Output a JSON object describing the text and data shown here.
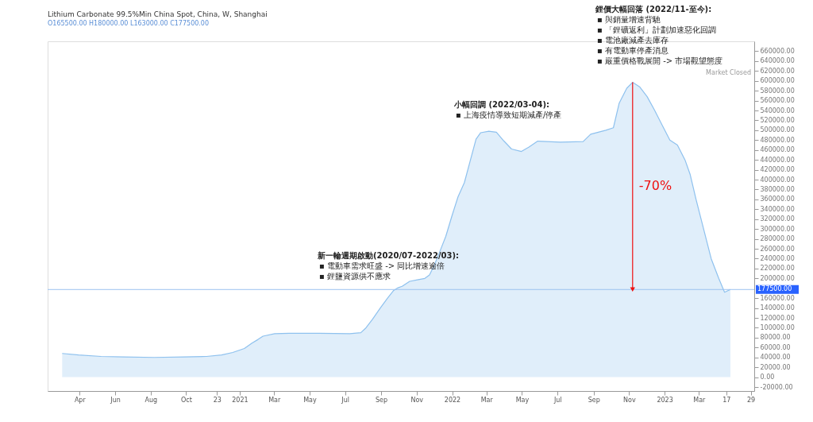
{
  "chart_data": {
    "type": "area",
    "title": "Lithium Carbonate 99.5%Min China Spot, China, W, Shanghai",
    "subtitle": "O165500.00  H180000.00  L163000.00  C177500.00",
    "x": [
      "2020-03-02",
      "2020-03-30",
      "2020-05-08",
      "2020-06-16",
      "2020-08-07",
      "2020-09-27",
      "2020-11-05",
      "2020-12-01",
      "2020-12-20",
      "2021-01-09",
      "2021-01-22",
      "2021-02-01",
      "2021-02-10",
      "2021-03-02",
      "2021-03-27",
      "2021-05-18",
      "2021-07-09",
      "2021-07-28",
      "2021-08-06",
      "2021-08-17",
      "2021-08-30",
      "2021-09-12",
      "2021-09-22",
      "2021-09-30",
      "2021-10-07",
      "2021-10-20",
      "2021-11-02",
      "2021-11-15",
      "2021-11-23",
      "2021-12-01",
      "2021-12-11",
      "2021-12-21",
      "2022-01-01",
      "2022-01-11",
      "2022-01-22",
      "2022-02-01",
      "2022-02-11",
      "2022-02-19",
      "2022-03-05",
      "2022-03-18",
      "2022-03-31",
      "2022-04-13",
      "2022-04-30",
      "2022-05-13",
      "2022-05-28",
      "2022-07-06",
      "2022-08-14",
      "2022-08-27",
      "2022-09-22",
      "2022-10-05",
      "2022-10-15",
      "2022-10-28",
      "2022-11-07",
      "2022-11-19",
      "2022-12-02",
      "2022-12-15",
      "2022-12-28",
      "2023-01-10",
      "2023-01-23",
      "2023-02-05",
      "2023-02-14",
      "2023-02-24",
      "2023-03-09",
      "2023-03-22",
      "2023-04-04",
      "2023-04-14",
      "2023-04-24"
    ],
    "series": [
      {
        "color": "#8ec1ee",
        "values": [
          48000,
          45000,
          42000,
          41000,
          40000,
          41000,
          42000,
          45000,
          50000,
          58000,
          69000,
          76000,
          83000,
          88000,
          89000,
          89000,
          88000,
          90000,
          100000,
          117000,
          139000,
          160000,
          175000,
          181000,
          184000,
          194000,
          197000,
          200000,
          207000,
          226000,
          255000,
          285000,
          328000,
          365000,
          394000,
          438000,
          482000,
          495000,
          498000,
          496000,
          478000,
          462000,
          457000,
          466000,
          478000,
          476000,
          477000,
          492000,
          500000,
          505000,
          555000,
          585000,
          597000,
          588000,
          568000,
          540000,
          510000,
          480000,
          470000,
          440000,
          410000,
          360000,
          300000,
          240000,
          200000,
          172000,
          177500
        ]
      }
    ],
    "xlim": [
      "2020-02-06",
      "2023-06-04"
    ],
    "xticks": [
      {
        "value": "2020-04-01",
        "label": "Apr"
      },
      {
        "value": "2020-06-01",
        "label": "Jun"
      },
      {
        "value": "2020-08-01",
        "label": "Aug"
      },
      {
        "value": "2020-10-01",
        "label": "Oct"
      },
      {
        "value": "2020-11-23",
        "label": "23"
      },
      {
        "value": "2021-01-01",
        "label": "2021"
      },
      {
        "value": "2021-03-01",
        "label": "Mar"
      },
      {
        "value": "2021-05-01",
        "label": "May"
      },
      {
        "value": "2021-07-01",
        "label": "Jul"
      },
      {
        "value": "2021-09-01",
        "label": "Sep"
      },
      {
        "value": "2021-11-01",
        "label": "Nov"
      },
      {
        "value": "2022-01-01",
        "label": "2022"
      },
      {
        "value": "2022-03-01",
        "label": "Mar"
      },
      {
        "value": "2022-05-01",
        "label": "May"
      },
      {
        "value": "2022-07-01",
        "label": "Jul"
      },
      {
        "value": "2022-09-01",
        "label": "Sep"
      },
      {
        "value": "2022-11-01",
        "label": "Nov"
      },
      {
        "value": "2023-01-01",
        "label": "2023"
      },
      {
        "value": "2023-03-01",
        "label": "Mar"
      },
      {
        "value": "2023-04-17",
        "label": "17"
      },
      {
        "value": "2023-05-29",
        "label": "29"
      }
    ],
    "ylim": [
      -28000,
      680000
    ],
    "yticks": [
      {
        "value": -20000,
        "label": "-20000.00"
      },
      {
        "value": 0,
        "label": "0.00"
      },
      {
        "value": 20000,
        "label": "20000.00"
      },
      {
        "value": 40000,
        "label": "40000.00"
      },
      {
        "value": 60000,
        "label": "60000.00"
      },
      {
        "value": 80000,
        "label": "80000.00"
      },
      {
        "value": 100000,
        "label": "100000.00"
      },
      {
        "value": 120000,
        "label": "120000.00"
      },
      {
        "value": 140000,
        "label": "140000.00"
      },
      {
        "value": 160000,
        "label": "160000.00"
      },
      {
        "value": 200000,
        "label": "200000.00"
      },
      {
        "value": 220000,
        "label": "220000.00"
      },
      {
        "value": 240000,
        "label": "240000.00"
      },
      {
        "value": 260000,
        "label": "260000.00"
      },
      {
        "value": 280000,
        "label": "280000.00"
      },
      {
        "value": 300000,
        "label": "300000.00"
      },
      {
        "value": 320000,
        "label": "320000.00"
      },
      {
        "value": 340000,
        "label": "340000.00"
      },
      {
        "value": 360000,
        "label": "360000.00"
      },
      {
        "value": 380000,
        "label": "380000.00"
      },
      {
        "value": 400000,
        "label": "400000.00"
      },
      {
        "value": 420000,
        "label": "420000.00"
      },
      {
        "value": 440000,
        "label": "440000.00"
      },
      {
        "value": 460000,
        "label": "460000.00"
      },
      {
        "value": 480000,
        "label": "480000.00"
      },
      {
        "value": 500000,
        "label": "500000.00"
      },
      {
        "value": 520000,
        "label": "520000.00"
      },
      {
        "value": 540000,
        "label": "540000.00"
      },
      {
        "value": 560000,
        "label": "560000.00"
      },
      {
        "value": 580000,
        "label": "580000.00"
      },
      {
        "value": 600000,
        "label": "600000.00"
      },
      {
        "value": 620000,
        "label": "620000.00"
      },
      {
        "value": 640000,
        "label": "640000.00"
      },
      {
        "value": 660000,
        "label": "660000.00"
      }
    ],
    "ref_lines": [
      {
        "axis": "y",
        "value": 177500,
        "label": "177500.00",
        "color": "#9cc2f0"
      }
    ],
    "annotations": [
      "新一輪週期啟動(2020/07-2022/03):\n▪ 電動車需求旺盛 -> 同比增速逾倍\n▪ 鋰鹽資源供不應求",
      "小幅回調 (2022/03-04):\n▪ 上海疫情導致短期減產/停產",
      "鋰價大幅回落 (2022/11-至今):\n▪ 與銷量增速背馳\n▪ 「鋰礦返利」計劃加速惡化回調\n▪ 電池廠減產去庫存\n▪ 有電動車停產消息\n▪ 嚴重價格戰展開 -> 市場觀望態度",
      "Market Closed",
      "-70%"
    ],
    "grid": false
  }
}
